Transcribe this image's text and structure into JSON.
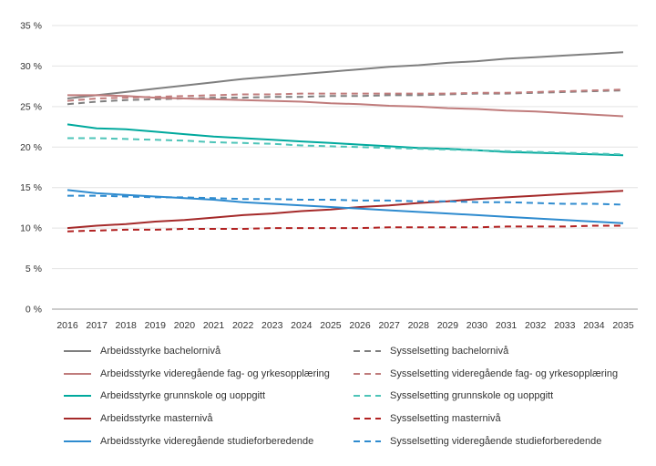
{
  "chart_data": {
    "type": "line",
    "title": "",
    "xlabel": "",
    "ylabel": "",
    "ylim": [
      0,
      35
    ],
    "y_ticks": [
      "0 %",
      "5 %",
      "10 %",
      "15 %",
      "20 %",
      "25 %",
      "30 %",
      "35 %"
    ],
    "y_tick_values": [
      0,
      5,
      10,
      15,
      20,
      25,
      30,
      35
    ],
    "x": [
      "2016",
      "2017",
      "2018",
      "2019",
      "2020",
      "2021",
      "2022",
      "2023",
      "2024",
      "2025",
      "2026",
      "2027",
      "2028",
      "2029",
      "2030",
      "2031",
      "2032",
      "2033",
      "2034",
      "2035"
    ],
    "grid": "horizontal",
    "legend_position": "bottom",
    "series": [
      {
        "name": "Arbeidsstyrke bachelornivå",
        "color": "#7f7f7f",
        "dash": "solid",
        "values": [
          26.0,
          26.4,
          26.8,
          27.2,
          27.6,
          28.0,
          28.4,
          28.7,
          29.0,
          29.3,
          29.6,
          29.9,
          30.1,
          30.4,
          30.6,
          30.9,
          31.1,
          31.3,
          31.5,
          31.7
        ]
      },
      {
        "name": "Sysselsetting bachelornivå",
        "color": "#7f7f7f",
        "dash": "dashed",
        "values": [
          25.3,
          25.6,
          25.8,
          25.9,
          26.0,
          26.1,
          26.1,
          26.2,
          26.2,
          26.3,
          26.3,
          26.4,
          26.4,
          26.5,
          26.6,
          26.6,
          26.7,
          26.8,
          26.9,
          27.0
        ]
      },
      {
        "name": "Arbeidsstyrke videregående fag- og yrkesopplæring",
        "color": "#c07c7c",
        "dash": "solid",
        "values": [
          26.4,
          26.4,
          26.3,
          26.1,
          26.0,
          25.9,
          25.8,
          25.7,
          25.6,
          25.4,
          25.3,
          25.1,
          25.0,
          24.8,
          24.7,
          24.5,
          24.4,
          24.2,
          24.0,
          23.8
        ]
      },
      {
        "name": "Sysselsetting videregående fag- og yrkesopplæring",
        "color": "#c07c7c",
        "dash": "dashed",
        "values": [
          25.7,
          26.0,
          26.1,
          26.2,
          26.3,
          26.4,
          26.5,
          26.5,
          26.6,
          26.6,
          26.6,
          26.6,
          26.6,
          26.6,
          26.7,
          26.7,
          26.8,
          26.9,
          27.0,
          27.1
        ]
      },
      {
        "name": "Arbeidsstyrke grunnskole og uoppgitt",
        "color": "#00a99d",
        "dash": "solid",
        "values": [
          22.8,
          22.3,
          22.2,
          21.9,
          21.6,
          21.3,
          21.1,
          20.9,
          20.7,
          20.5,
          20.3,
          20.1,
          19.9,
          19.8,
          19.6,
          19.4,
          19.3,
          19.2,
          19.1,
          19.0
        ]
      },
      {
        "name": "Sysselsetting grunnskole og uoppgitt",
        "color": "#4dc4b8",
        "dash": "dashed",
        "values": [
          21.1,
          21.1,
          21.0,
          20.9,
          20.8,
          20.6,
          20.5,
          20.4,
          20.2,
          20.1,
          20.0,
          19.9,
          19.8,
          19.7,
          19.6,
          19.5,
          19.4,
          19.3,
          19.2,
          19.1
        ]
      },
      {
        "name": "Arbeidsstyrke masternivå",
        "color": "#a52a2a",
        "dash": "solid",
        "values": [
          10.0,
          10.3,
          10.5,
          10.8,
          11.0,
          11.3,
          11.6,
          11.8,
          12.1,
          12.3,
          12.6,
          12.8,
          13.1,
          13.3,
          13.6,
          13.8,
          14.0,
          14.2,
          14.4,
          14.6
        ]
      },
      {
        "name": "Sysselsetting masternivå",
        "color": "#b22222",
        "dash": "dashed",
        "values": [
          9.6,
          9.7,
          9.8,
          9.8,
          9.9,
          9.9,
          9.9,
          10.0,
          10.0,
          10.0,
          10.0,
          10.1,
          10.1,
          10.1,
          10.1,
          10.2,
          10.2,
          10.2,
          10.3,
          10.3
        ]
      },
      {
        "name": "Arbeidsstyrke videregående studieforberedende",
        "color": "#2e8bcf",
        "dash": "solid",
        "values": [
          14.7,
          14.3,
          14.1,
          13.9,
          13.7,
          13.5,
          13.2,
          13.0,
          12.8,
          12.6,
          12.4,
          12.2,
          12.0,
          11.8,
          11.6,
          11.4,
          11.2,
          11.0,
          10.8,
          10.6
        ]
      },
      {
        "name": "Sysselsetting videregående studieforberedende",
        "color": "#2e8bcf",
        "dash": "dashed",
        "values": [
          14.0,
          14.0,
          13.9,
          13.8,
          13.8,
          13.7,
          13.6,
          13.6,
          13.5,
          13.5,
          13.4,
          13.4,
          13.3,
          13.3,
          13.2,
          13.2,
          13.1,
          13.0,
          13.0,
          12.9
        ]
      }
    ]
  }
}
